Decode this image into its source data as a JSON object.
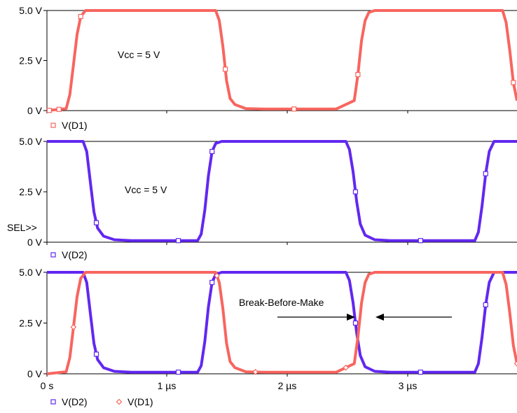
{
  "colors": {
    "d1": "#f8655f",
    "d2": "#6228f0",
    "axis": "#000000"
  },
  "sel_label": "SEL>>",
  "chart_data": [
    {
      "type": "line",
      "ylim": [
        0,
        5
      ],
      "xlim": [
        0,
        3.9
      ],
      "y_ticks": [
        "0 V",
        "2.5 V",
        "5.0 V"
      ],
      "legend": [
        {
          "marker": "square",
          "label": "V(D1)"
        }
      ],
      "annotations": [
        {
          "text": "Vcc = 5 V"
        }
      ],
      "series": [
        {
          "name": "V(D1)",
          "color": "#f8655f",
          "marker": "square",
          "x": [
            0,
            0.16,
            0.19,
            0.22,
            0.25,
            0.28,
            0.32,
            1.4,
            1.43,
            1.46,
            1.49,
            1.52,
            1.56,
            1.65,
            1.8,
            2.4,
            2.55,
            2.58,
            2.61,
            2.64,
            2.67,
            2.72,
            3.78,
            3.81,
            3.84,
            3.87,
            3.9
          ],
          "y": [
            0,
            0.1,
            0.8,
            2.3,
            3.8,
            4.7,
            5.0,
            5.0,
            4.5,
            3.2,
            1.5,
            0.6,
            0.3,
            0.1,
            0.08,
            0.08,
            0.5,
            1.8,
            3.5,
            4.5,
            4.9,
            5.0,
            5.0,
            4.4,
            3.0,
            1.4,
            0.5
          ],
          "markers_x": [
            0.02,
            0.1,
            0.28,
            1.48,
            2.05,
            2.58,
            3.87
          ]
        }
      ]
    },
    {
      "type": "line",
      "ylim": [
        0,
        5
      ],
      "xlim": [
        0,
        3.9
      ],
      "y_ticks": [
        "0 V",
        "2.5 V",
        "5.0 V"
      ],
      "legend": [
        {
          "marker": "square",
          "label": "V(D2)"
        }
      ],
      "annotations": [
        {
          "text": "Vcc = 5 V"
        }
      ],
      "series": [
        {
          "name": "V(D2)",
          "color": "#6228f0",
          "marker": "square",
          "x": [
            0,
            0.3,
            0.33,
            0.36,
            0.39,
            0.42,
            0.47,
            0.56,
            0.7,
            1.25,
            1.28,
            1.31,
            1.34,
            1.37,
            1.4,
            1.45,
            2.48,
            2.51,
            2.54,
            2.57,
            2.6,
            2.64,
            2.72,
            2.85,
            3.55,
            3.58,
            3.61,
            3.64,
            3.67,
            3.71,
            3.9
          ],
          "y": [
            5.0,
            5.0,
            4.5,
            3.0,
            1.5,
            0.7,
            0.3,
            0.12,
            0.08,
            0.08,
            0.4,
            1.6,
            3.3,
            4.5,
            4.9,
            5.0,
            5.0,
            4.6,
            3.5,
            2.0,
            0.9,
            0.35,
            0.12,
            0.08,
            0.08,
            0.5,
            1.8,
            3.4,
            4.5,
            5.0,
            5.0
          ],
          "markers_x": [
            0.41,
            1.09,
            1.37,
            2.56,
            3.1,
            3.64
          ]
        }
      ]
    },
    {
      "type": "line",
      "ylim": [
        0,
        5
      ],
      "xlim": [
        0,
        3.9
      ],
      "x_ticks": [
        "0 s",
        "1 µs",
        "2 µs",
        "3 µs"
      ],
      "y_ticks": [
        "0 V",
        "2.5 V",
        "5.0 V"
      ],
      "legend": [
        {
          "marker": "square",
          "label": "V(D2)"
        },
        {
          "marker": "diamond",
          "label": "V(D1)"
        }
      ],
      "annotations": [
        {
          "text": "Break-Before-Make"
        }
      ],
      "series": [
        {
          "name": "V(D2)",
          "color": "#6228f0",
          "marker": "square",
          "x": [
            0,
            0.3,
            0.33,
            0.36,
            0.39,
            0.42,
            0.47,
            0.56,
            0.7,
            1.25,
            1.28,
            1.31,
            1.34,
            1.37,
            1.4,
            1.45,
            2.48,
            2.51,
            2.54,
            2.57,
            2.6,
            2.64,
            2.72,
            2.85,
            3.55,
            3.58,
            3.61,
            3.64,
            3.67,
            3.71,
            3.9
          ],
          "y": [
            5.0,
            5.0,
            4.5,
            3.0,
            1.5,
            0.7,
            0.3,
            0.12,
            0.08,
            0.08,
            0.4,
            1.6,
            3.3,
            4.5,
            4.9,
            5.0,
            5.0,
            4.6,
            3.5,
            2.0,
            0.9,
            0.35,
            0.12,
            0.08,
            0.08,
            0.5,
            1.8,
            3.4,
            4.5,
            5.0,
            5.0
          ],
          "markers_x": [
            0.41,
            1.09,
            1.37,
            2.56,
            3.1,
            3.64
          ]
        },
        {
          "name": "V(D1)",
          "color": "#f8655f",
          "marker": "diamond",
          "x": [
            0,
            0.16,
            0.19,
            0.22,
            0.25,
            0.28,
            0.32,
            1.4,
            1.43,
            1.46,
            1.49,
            1.52,
            1.56,
            1.65,
            1.8,
            2.4,
            2.55,
            2.58,
            2.61,
            2.64,
            2.67,
            2.72,
            3.78,
            3.81,
            3.84,
            3.87,
            3.9
          ],
          "y": [
            0,
            0.1,
            0.8,
            2.3,
            3.8,
            4.7,
            5.0,
            5.0,
            4.5,
            3.2,
            1.5,
            0.6,
            0.3,
            0.1,
            0.08,
            0.08,
            0.5,
            1.8,
            3.5,
            4.5,
            4.9,
            5.0,
            5.0,
            4.4,
            3.0,
            1.4,
            0.5
          ],
          "markers_x": [
            0.22,
            1.41,
            1.73,
            2.48,
            3.9
          ]
        }
      ]
    }
  ]
}
